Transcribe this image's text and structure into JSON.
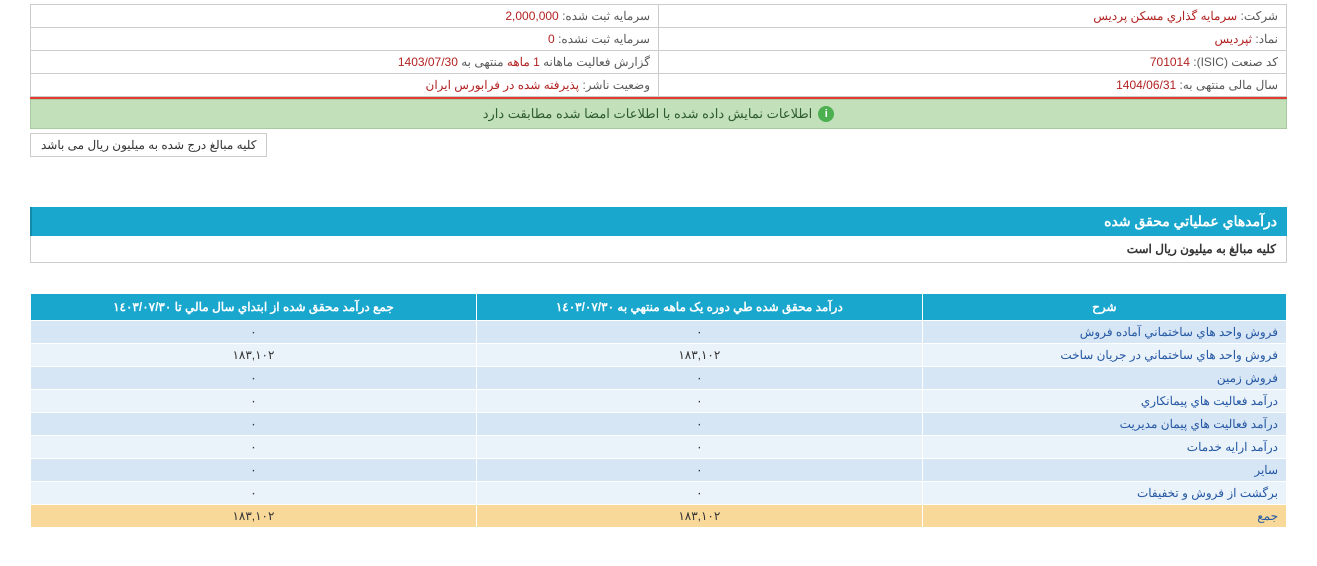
{
  "info": {
    "company_label": "شرکت:",
    "company_value": "سرمايه گذاري مسكن پرديس",
    "symbol_label": "نماد:",
    "symbol_value": "ثپرديس",
    "isic_label": "کد صنعت (ISIC):",
    "isic_value": "701014",
    "fiscal_year_label": "سال مالی منتهی به:",
    "fiscal_year_value": "1404/06/31",
    "reg_capital_label": "سرمایه ثبت شده:",
    "reg_capital_value": "2,000,000",
    "unreg_capital_label": "سرمایه ثبت نشده:",
    "unreg_capital_value": "0",
    "report_label_part1": "گزارش فعالیت ماهانه",
    "report_label_part2": "1 ماهه",
    "report_label_part3": "منتهی به",
    "report_value": "1403/07/30",
    "status_label": "وضعیت ناشر:",
    "status_value": "پذيرفته شده در فرابورس ايران"
  },
  "notice": "اطلاعات نمایش داده شده با اطلاعات امضا شده مطابقت دارد",
  "unit_note": "کلیه مبالغ درج شده به میلیون ریال می باشد",
  "section_title": "درآمدهاي عملياتي محقق شده",
  "section_subtitle": "کلیه مبالغ به میلیون ریال است",
  "table": {
    "headers": {
      "desc": "شرح",
      "period": "درآمد محقق شده طي دوره يک ماهه منتهي به ١٤٠٣/٠٧/٣٠",
      "cumulative": "جمع درآمد محقق شده از ابتداي سال مالي تا ١٤٠٣/٠٧/٣٠"
    },
    "rows": [
      {
        "desc": "فروش واحد هاي ساختماني آماده فروش",
        "period": "٠",
        "cum": "٠"
      },
      {
        "desc": "فروش واحد هاي ساختماني در جريان ساخت",
        "period": "١٨٣,١٠٢",
        "cum": "١٨٣,١٠٢"
      },
      {
        "desc": "فروش زمين",
        "period": "٠",
        "cum": "٠"
      },
      {
        "desc": "درآمد فعاليت هاي پيمانکاري",
        "period": "٠",
        "cum": "٠"
      },
      {
        "desc": "درآمد فعاليت هاي پيمان مديريت",
        "period": "٠",
        "cum": "٠"
      },
      {
        "desc": "درآمد ارايه خدمات",
        "period": "٠",
        "cum": "٠"
      },
      {
        "desc": "ساير",
        "period": "٠",
        "cum": "٠"
      },
      {
        "desc": "برگشت از فروش و تخفيفات",
        "period": "٠",
        "cum": "٠"
      }
    ],
    "total": {
      "desc": "جمع",
      "period": "١٨٣,١٠٢",
      "cum": "١٨٣,١٠٢"
    }
  }
}
